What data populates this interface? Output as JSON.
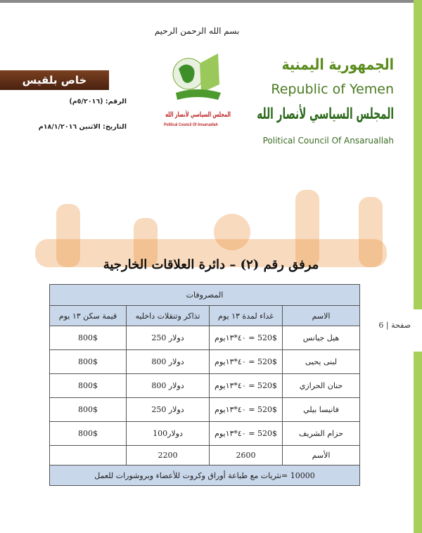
{
  "header": {
    "badge": "خاص بلقيس",
    "ref_number": "الرقم: (٥/٢٠١٦م)",
    "date": "التاريخ: الاثنين ١٨/١/٢٠١٦م",
    "basmala": "بسم الله الرحمن الرحيم",
    "logo_ar": "المجلس السياسي لأنصار الله",
    "logo_en": "Political Council Of Ansaruallah",
    "republic_ar": "الجمهورية اليمنية",
    "republic_en": "Republic of Yemen",
    "council_ar": "المجلس السياسي لأنصار الله",
    "council_en": "Political Council Of Ansaruallah"
  },
  "watermark": "بلقيس",
  "title": "مرفق رقم (٢) – دائرة العلاقات الخارجية",
  "page_label": "صفحة | 6",
  "table": {
    "caption": "المصروفات",
    "columns": [
      "الاسم",
      "غداء لمدة ١٣ يوم",
      "تذاكر وتنقلات داخليه",
      "قيمة سكن ١٣ يوم"
    ],
    "rows": [
      [
        "هيل جيانس",
        "520$ = ٤٠*١٣يوم",
        "دولار 250",
        "800$"
      ],
      [
        "لبنى يحيى",
        "520$ = ٤٠*١٣يوم",
        "دولار 800",
        "800$"
      ],
      [
        "حنان الحرازي",
        "520$ = ٤٠*١٣يوم",
        "دولار 800",
        "800$"
      ],
      [
        "فانيسا بيلي",
        "520$ = ٤٠*١٣يوم",
        "دولار 250",
        "800$"
      ],
      [
        "حزام الشريف",
        "520$ = ٤٠*١٣يوم",
        "دولار100",
        "800$"
      ]
    ],
    "totals": [
      "الأسم",
      "2600",
      "2200",
      ""
    ],
    "footer": "10000 =نثريات مع طباعة أوراق وكروت للأعضاء وبروشورات للعمل"
  }
}
